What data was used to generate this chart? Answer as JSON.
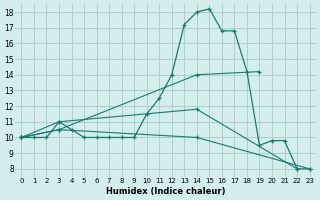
{
  "bg_color": "#d4eeed",
  "grid_color": "#b0cece",
  "line_color": "#1a7a6e",
  "marker_color": "#1a7a6e",
  "xlabel": "Humidex (Indice chaleur)",
  "xlim": [
    -0.5,
    23.5
  ],
  "ylim": [
    7.5,
    18.5
  ],
  "yticks": [
    8,
    9,
    10,
    11,
    12,
    13,
    14,
    15,
    16,
    17,
    18
  ],
  "xticks": [
    0,
    1,
    2,
    3,
    4,
    5,
    6,
    7,
    8,
    9,
    10,
    11,
    12,
    13,
    14,
    15,
    16,
    17,
    18,
    19,
    20,
    21,
    22,
    23
  ],
  "series": [
    {
      "x": [
        0,
        1,
        2,
        3,
        4,
        5,
        6,
        7,
        8,
        9,
        10,
        11,
        12,
        13,
        14,
        15,
        16,
        17,
        18,
        19,
        20,
        21,
        22,
        23
      ],
      "y": [
        10,
        10,
        10,
        11,
        10.5,
        10,
        10,
        10,
        10,
        10,
        11.5,
        12.5,
        14,
        17.2,
        18,
        18.2,
        16.8,
        16.8,
        14.2,
        9.5,
        9.8,
        9.8,
        8,
        8
      ]
    },
    {
      "x": [
        0,
        3,
        14,
        19
      ],
      "y": [
        10,
        10.5,
        14,
        14.2
      ]
    },
    {
      "x": [
        0,
        3,
        14,
        22
      ],
      "y": [
        10,
        11,
        11.8,
        8
      ]
    },
    {
      "x": [
        0,
        3,
        14,
        23
      ],
      "y": [
        10,
        10.5,
        10,
        8
      ]
    }
  ]
}
